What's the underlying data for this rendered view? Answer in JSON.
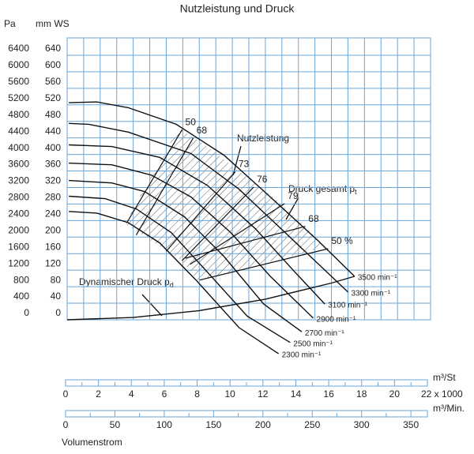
{
  "chart_data": {
    "type": "line",
    "title": "Nutzleistung und Druck",
    "ylabel": "Pa",
    "y2label": "mm WS",
    "xlabel": "Volumenstrom",
    "xlim": [
      0,
      22
    ],
    "ylim": [
      0,
      6800
    ],
    "yticks": [
      0,
      400,
      800,
      1200,
      1600,
      2000,
      2400,
      2800,
      3200,
      3600,
      4000,
      4400,
      4800,
      5200,
      5600,
      6000,
      6400
    ],
    "y2lim": [
      0,
      680
    ],
    "y2ticks": [
      0,
      40,
      80,
      120,
      160,
      200,
      240,
      280,
      320,
      360,
      400,
      440,
      480,
      520,
      560,
      600,
      640
    ],
    "grid_x_step": 1,
    "grid_color": "#6aa6d8",
    "x_axes": [
      {
        "unit": "m³/St",
        "xlim": [
          0,
          22
        ],
        "xticks": [
          0,
          2,
          4,
          6,
          8,
          10,
          12,
          14,
          16,
          18,
          20,
          {
            "value": 22,
            "label": "22 x 1000"
          }
        ],
        "minor_ticks": [
          1,
          3,
          5,
          7,
          9,
          11,
          13,
          15,
          17,
          19,
          21
        ]
      },
      {
        "unit": "m³/Min.",
        "xlim": [
          0,
          366.7
        ],
        "xticks": [
          0,
          50,
          100,
          150,
          200,
          250,
          300,
          350
        ],
        "minor_ticks": [
          25,
          75,
          125,
          175,
          225,
          275,
          325
        ]
      }
    ],
    "series": [
      {
        "name": "3500 min⁻¹",
        "color": "#111111",
        "x": [
          0.1,
          1.8,
          3.7,
          6.6,
          9.5,
          12.3,
          15.2,
          17.4
        ],
        "values": [
          5250,
          5270,
          5130,
          4730,
          3980,
          2970,
          1910,
          1050
        ]
      },
      {
        "name": "3300 min⁻¹",
        "color": "#111111",
        "x": [
          0.1,
          1.3,
          3.7,
          7.5,
          10.4,
          13.3,
          17.0
        ],
        "values": [
          4750,
          4730,
          4540,
          4020,
          3160,
          2070,
          670
        ]
      },
      {
        "name": "3100 min⁻¹",
        "color": "#111111",
        "x": [
          0.1,
          2.7,
          5.6,
          8.5,
          11.4,
          13.8,
          15.6
        ],
        "values": [
          4230,
          4190,
          3930,
          3250,
          2200,
          1150,
          380
        ]
      },
      {
        "name": "2900 min⁻¹",
        "color": "#111111",
        "x": [
          0.1,
          2.7,
          5.1,
          7.5,
          9.9,
          12.3,
          14.9
        ],
        "values": [
          3790,
          3750,
          3500,
          2970,
          2110,
          1050,
          40
        ]
      },
      {
        "name": "2700 min⁻¹",
        "color": "#111111",
        "x": [
          0.1,
          2.7,
          4.7,
          7.1,
          9.5,
          11.9,
          14.2
        ],
        "values": [
          3370,
          3310,
          3100,
          2490,
          1530,
          380,
          -290
        ]
      },
      {
        "name": "2500 min⁻¹",
        "color": "#111111",
        "x": [
          0.1,
          2.3,
          4.2,
          6.3,
          8.5,
          10.9,
          13.5
        ],
        "values": [
          2990,
          2930,
          2680,
          2110,
          1150,
          90,
          -550
        ]
      },
      {
        "name": "2300 min⁻¹",
        "color": "#111111",
        "x": [
          0.1,
          1.8,
          3.7,
          5.6,
          7.8,
          10.4,
          12.8
        ],
        "values": [
          2620,
          2580,
          2350,
          1860,
          960,
          -190,
          -820
        ]
      }
    ],
    "dynamic_pressure": {
      "label": "Dynamischer Druck p",
      "label_sub": "d",
      "x": [
        0,
        4,
        8,
        12,
        16,
        17.4
      ],
      "values": [
        0,
        55,
        222,
        499,
        888,
        1050
      ]
    },
    "efficiency_lines": [
      {
        "label": "50",
        "x": [
          6.96,
          3.6
        ],
        "values": [
          4600,
          2340
        ]
      },
      {
        "label": "68",
        "x": [
          7.64,
          4.18
        ],
        "values": [
          4400,
          2050
        ]
      },
      {
        "label": "73",
        "x": [
          10.18,
          6.0
        ],
        "values": [
          3580,
          1660
        ]
      },
      {
        "label": "76",
        "x": [
          11.29,
          6.96
        ],
        "values": [
          3210,
          1430
        ]
      },
      {
        "label": "79",
        "x": [
          13.16,
          7.44
        ],
        "values": [
          2810,
          1340
        ]
      },
      {
        "label": "68",
        "x": [
          14.41,
          7.16
        ],
        "values": [
          2260,
          1490
        ]
      },
      {
        "label": "50 %",
        "x": [
          15.8,
          8.02
        ],
        "values": [
          1720,
          960
        ]
      }
    ],
    "annotations": [
      {
        "text": "Nutzleistung"
      },
      {
        "text": "Druck gesamt p",
        "sub": "t"
      }
    ]
  }
}
